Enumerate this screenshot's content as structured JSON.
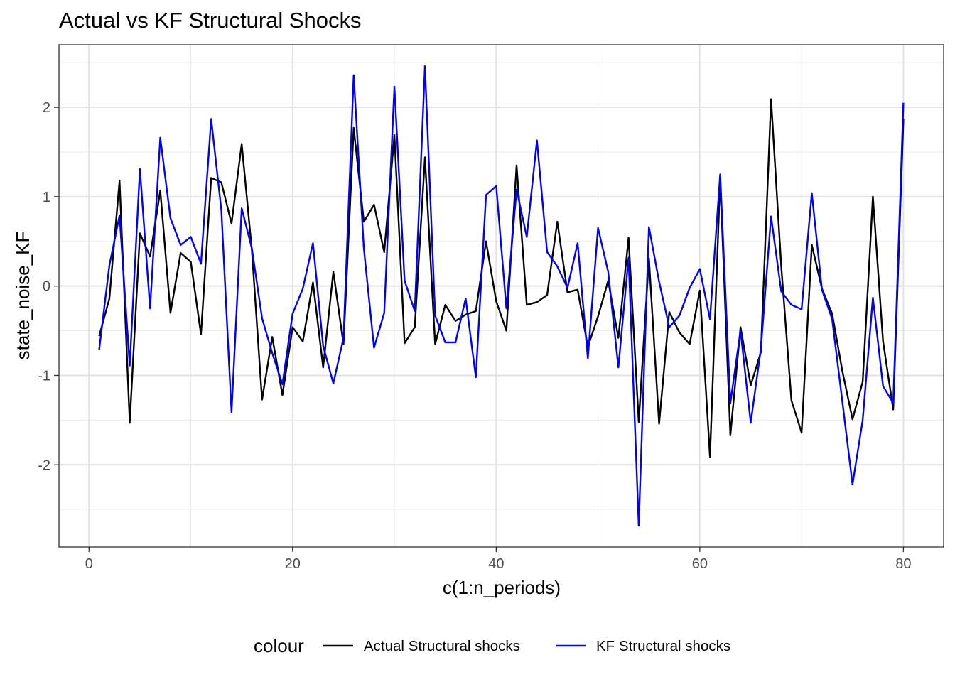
{
  "chart_data": {
    "type": "line",
    "title": "Actual vs KF Structural Shocks",
    "xlabel": "c(1:n_periods)",
    "ylabel": "state_noise_KF",
    "xlim": [
      -2.95,
      83.95
    ],
    "ylim": [
      -2.92,
      2.7
    ],
    "x_ticks": [
      0,
      20,
      40,
      60,
      80
    ],
    "y_ticks": [
      -2,
      -1,
      0,
      1,
      2
    ],
    "grid": true,
    "legend": {
      "title": "colour",
      "position": "bottom",
      "entries": [
        "Actual Structural shocks",
        "KF Structural shocks"
      ]
    },
    "x": [
      1,
      2,
      3,
      4,
      5,
      6,
      7,
      8,
      9,
      10,
      11,
      12,
      13,
      14,
      15,
      16,
      17,
      18,
      19,
      20,
      21,
      22,
      23,
      24,
      25,
      26,
      27,
      28,
      29,
      30,
      31,
      32,
      33,
      34,
      35,
      36,
      37,
      38,
      39,
      40,
      41,
      42,
      43,
      44,
      45,
      46,
      47,
      48,
      49,
      50,
      51,
      52,
      53,
      54,
      55,
      56,
      57,
      58,
      59,
      60,
      61,
      62,
      63,
      64,
      65,
      66,
      67,
      68,
      69,
      70,
      71,
      72,
      73,
      74,
      75,
      76,
      77,
      78,
      79,
      80
    ],
    "series": [
      {
        "name": "Actual Structural shocks",
        "color": "#000000",
        "values": [
          -0.56,
          -0.14,
          1.18,
          -1.53,
          0.59,
          0.33,
          1.07,
          -0.3,
          0.37,
          0.27,
          -0.54,
          1.21,
          1.16,
          0.7,
          1.59,
          0.4,
          -1.27,
          -0.57,
          -1.22,
          -0.46,
          -0.62,
          0.04,
          -0.91,
          0.16,
          -0.65,
          1.77,
          0.72,
          0.91,
          0.38,
          1.69,
          -0.64,
          -0.46,
          1.44,
          -0.65,
          -0.21,
          -0.39,
          -0.32,
          -0.28,
          0.5,
          -0.17,
          -0.5,
          1.35,
          -0.21,
          -0.18,
          -0.1,
          0.72,
          -0.07,
          -0.04,
          -0.68,
          -0.34,
          0.06,
          -0.58,
          0.54,
          -1.52,
          0.31,
          -1.54,
          -0.29,
          -0.52,
          -0.65,
          -0.05,
          -1.91,
          1.21,
          -1.67,
          -0.46,
          -1.11,
          -0.74,
          2.09,
          0.22,
          -1.28,
          -1.64,
          0.46,
          -0.03,
          -0.31,
          -0.95,
          -1.49,
          -1.07,
          1.0,
          -0.62,
          -1.38,
          1.87
        ]
      },
      {
        "name": "KF Structural shocks",
        "color": "#0000ff",
        "values": [
          -0.71,
          0.23,
          0.79,
          -0.89,
          1.31,
          -0.25,
          1.66,
          0.76,
          0.46,
          0.55,
          0.25,
          1.87,
          0.85,
          -1.41,
          0.87,
          0.42,
          -0.36,
          -0.75,
          -1.1,
          -0.31,
          -0.03,
          0.48,
          -0.67,
          -1.09,
          -0.58,
          2.36,
          0.42,
          -0.69,
          -0.3,
          2.23,
          0.06,
          -0.28,
          2.46,
          -0.33,
          -0.63,
          -0.63,
          -0.14,
          -1.02,
          1.02,
          1.12,
          -0.25,
          1.08,
          0.55,
          1.63,
          0.38,
          0.22,
          -0.02,
          0.48,
          -0.81,
          0.65,
          0.16,
          -0.91,
          0.32,
          -2.68,
          0.66,
          0.05,
          -0.46,
          -0.33,
          -0.02,
          0.19,
          -0.37,
          1.25,
          -1.31,
          -0.5,
          -1.53,
          -0.7,
          0.78,
          -0.06,
          -0.21,
          -0.26,
          1.04,
          -0.04,
          -0.37,
          -1.29,
          -2.22,
          -1.5,
          -0.13,
          -1.12,
          -1.31,
          2.05
        ]
      }
    ]
  }
}
